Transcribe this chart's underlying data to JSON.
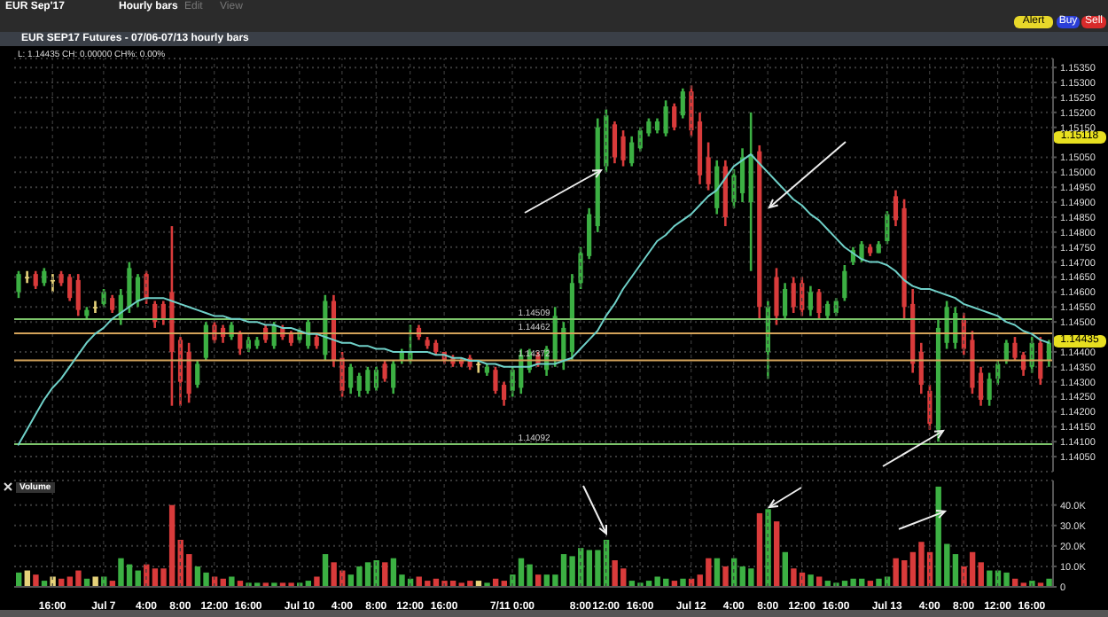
{
  "chart_data": [
    {
      "type": "candlestick",
      "title": "EUR SEP17 Futures - 07/06-07/13 hourly bars",
      "subtitle": "L: 1.14435 CH: 0.00000 CH%: 0.00%",
      "annotations": [
        "EUR Sep'17",
        "Hourly bars",
        "Edit",
        "View",
        "Alert",
        "Buy",
        "Sell",
        "1.15118",
        "1.14435"
      ],
      "categories": [
        null,
        null,
        null,
        null,
        null,
        null,
        null,
        null,
        null,
        null,
        null,
        null,
        null,
        null,
        null,
        null,
        null,
        null,
        null,
        null,
        null,
        null,
        null,
        null,
        null,
        null,
        null,
        null,
        null,
        null,
        null,
        null,
        null,
        null,
        null,
        null,
        null,
        null,
        null,
        null,
        null,
        null,
        null,
        null,
        null,
        null,
        null,
        null,
        null,
        null,
        null,
        null,
        null,
        null,
        null,
        null,
        null,
        null,
        null,
        null,
        null,
        null,
        null,
        null,
        null,
        null,
        null,
        null,
        null,
        null,
        null,
        null,
        null,
        null,
        null,
        null,
        null,
        null,
        null,
        null,
        null,
        null,
        null,
        null,
        null,
        null,
        null,
        null,
        null,
        null,
        null,
        null,
        null,
        null,
        null,
        null,
        null,
        null,
        null,
        null,
        null,
        null,
        null,
        null,
        null,
        null,
        null,
        null,
        null,
        null,
        null,
        null,
        null,
        null,
        null,
        null,
        null,
        null,
        null,
        null,
        null,
        null
      ],
      "ohlc": [
        [
          1.146,
          1.1467,
          1.1458,
          1.1466
        ],
        [
          1.1465,
          1.1467,
          1.1463,
          1.1465
        ],
        [
          1.1466,
          1.1467,
          1.1461,
          1.1462
        ],
        [
          1.1463,
          1.1468,
          1.1462,
          1.1467
        ],
        [
          1.1464,
          1.1466,
          1.146,
          1.1464
        ],
        [
          1.1466,
          1.1467,
          1.1462,
          1.1463
        ],
        [
          1.1465,
          1.1466,
          1.1457,
          1.1458
        ],
        [
          1.1464,
          1.1466,
          1.1452,
          1.1454
        ],
        [
          1.1452,
          1.1455,
          1.1451,
          1.1454
        ],
        [
          1.1455,
          1.1457,
          1.1453,
          1.1455
        ],
        [
          1.1456,
          1.1461,
          1.1455,
          1.146
        ],
        [
          1.1458,
          1.1459,
          1.1453,
          1.1454
        ],
        [
          1.1451,
          1.1461,
          1.1449,
          1.1459
        ],
        [
          1.1455,
          1.147,
          1.1453,
          1.1468
        ],
        [
          1.1457,
          1.1466,
          1.1455,
          1.1465
        ],
        [
          1.1466,
          1.1467,
          1.1456,
          1.1458
        ],
        [
          1.1456,
          1.1457,
          1.1448,
          1.145
        ],
        [
          1.1456,
          1.1457,
          1.1449,
          1.1451
        ],
        [
          1.146,
          1.1482,
          1.1422,
          1.144
        ],
        [
          1.1444,
          1.1445,
          1.1422,
          1.143
        ],
        [
          1.144,
          1.1443,
          1.1423,
          1.1426
        ],
        [
          1.1429,
          1.1437,
          1.1428,
          1.1436
        ],
        [
          1.1438,
          1.145,
          1.1437,
          1.1449
        ],
        [
          1.1449,
          1.145,
          1.1443,
          1.1444
        ],
        [
          1.1448,
          1.1449,
          1.1443,
          1.1445
        ],
        [
          1.1445,
          1.145,
          1.1444,
          1.1449
        ],
        [
          1.1446,
          1.1447,
          1.1439,
          1.1441
        ],
        [
          1.1441,
          1.1445,
          1.144,
          1.1444
        ],
        [
          1.1442,
          1.1445,
          1.1441,
          1.1444
        ],
        [
          1.1448,
          1.1449,
          1.1443,
          1.1444
        ],
        [
          1.1442,
          1.145,
          1.1441,
          1.1449
        ],
        [
          1.1448,
          1.1449,
          1.1444,
          1.1445
        ],
        [
          1.1446,
          1.1447,
          1.1442,
          1.1443
        ],
        [
          1.1444,
          1.1448,
          1.1443,
          1.1447
        ],
        [
          1.1442,
          1.1451,
          1.1441,
          1.145
        ],
        [
          1.1445,
          1.1446,
          1.1441,
          1.1442
        ],
        [
          1.1439,
          1.1459,
          1.1437,
          1.1457
        ],
        [
          1.1457,
          1.1459,
          1.1435,
          1.1437
        ],
        [
          1.1438,
          1.144,
          1.1425,
          1.1427
        ],
        [
          1.1428,
          1.1436,
          1.1426,
          1.1435
        ],
        [
          1.1427,
          1.1433,
          1.1425,
          1.1432
        ],
        [
          1.1427,
          1.1435,
          1.1426,
          1.1434
        ],
        [
          1.1428,
          1.1435,
          1.1427,
          1.1434
        ],
        [
          1.1436,
          1.1437,
          1.143,
          1.1431
        ],
        [
          1.1428,
          1.1437,
          1.1426,
          1.1436
        ],
        [
          1.1437,
          1.1441,
          1.1436,
          1.144
        ],
        [
          1.1437,
          1.1449,
          1.1436,
          1.144
        ],
        [
          1.1448,
          1.1449,
          1.1444,
          1.1445
        ],
        [
          1.1444,
          1.1445,
          1.1441,
          1.1442
        ],
        [
          1.1443,
          1.1444,
          1.1439,
          1.144
        ],
        [
          1.144,
          1.144,
          1.1436,
          1.1437
        ],
        [
          1.1438,
          1.1439,
          1.1435,
          1.1436
        ],
        [
          1.1437,
          1.1438,
          1.1435,
          1.1436
        ],
        [
          1.1438,
          1.1439,
          1.1434,
          1.1435
        ],
        [
          1.1436,
          1.1437,
          1.1433,
          1.1436
        ],
        [
          1.1433,
          1.1436,
          1.1432,
          1.1435
        ],
        [
          1.1434,
          1.1435,
          1.1426,
          1.1427
        ],
        [
          1.1429,
          1.143,
          1.1422,
          1.1424
        ],
        [
          1.1427,
          1.1435,
          1.1425,
          1.1434
        ],
        [
          1.1428,
          1.1441,
          1.1426,
          1.1439
        ],
        [
          1.1434,
          1.1441,
          1.1433,
          1.144
        ],
        [
          1.1439,
          1.144,
          1.1435,
          1.1436
        ],
        [
          1.1434,
          1.1442,
          1.1432,
          1.1441
        ],
        [
          1.1437,
          1.1455,
          1.1435,
          1.1452
        ],
        [
          1.1437,
          1.145,
          1.1434,
          1.1448
        ],
        [
          1.144,
          1.1466,
          1.1437,
          1.1463
        ],
        [
          1.1463,
          1.1475,
          1.1461,
          1.1473
        ],
        [
          1.1472,
          1.1488,
          1.1471,
          1.1486
        ],
        [
          1.1482,
          1.1518,
          1.148,
          1.1515
        ],
        [
          1.1502,
          1.1521,
          1.15,
          1.1519
        ],
        [
          1.1516,
          1.1517,
          1.1503,
          1.1505
        ],
        [
          1.1512,
          1.1514,
          1.1502,
          1.1504
        ],
        [
          1.1503,
          1.1512,
          1.1502,
          1.151
        ],
        [
          1.1508,
          1.1515,
          1.1507,
          1.1514
        ],
        [
          1.1513,
          1.1518,
          1.1512,
          1.1517
        ],
        [
          1.1514,
          1.1518,
          1.1513,
          1.1517
        ],
        [
          1.1513,
          1.1524,
          1.1512,
          1.1522
        ],
        [
          1.1522,
          1.1523,
          1.1514,
          1.1515
        ],
        [
          1.1519,
          1.1528,
          1.1518,
          1.1527
        ],
        [
          1.1527,
          1.1529,
          1.1512,
          1.1514
        ],
        [
          1.1517,
          1.152,
          1.1496,
          1.1499
        ],
        [
          1.1505,
          1.151,
          1.1494,
          1.1496
        ],
        [
          1.1488,
          1.1504,
          1.1486,
          1.1502
        ],
        [
          1.1502,
          1.1504,
          1.1482,
          1.1485
        ],
        [
          1.149,
          1.1501,
          1.1488,
          1.1499
        ],
        [
          1.1493,
          1.1508,
          1.149,
          1.1505
        ],
        [
          1.149,
          1.152,
          1.1467,
          1.1506
        ],
        [
          1.1507,
          1.1509,
          1.1451,
          1.1455
        ],
        [
          1.144,
          1.1457,
          1.1431,
          1.1455
        ],
        [
          1.1465,
          1.1468,
          1.1449,
          1.1452
        ],
        [
          1.1452,
          1.1463,
          1.1451,
          1.1461
        ],
        [
          1.1463,
          1.1465,
          1.1453,
          1.1455
        ],
        [
          1.1463,
          1.1465,
          1.1452,
          1.1454
        ],
        [
          1.1454,
          1.1462,
          1.1452,
          1.146
        ],
        [
          1.146,
          1.1461,
          1.1451,
          1.1453
        ],
        [
          1.1452,
          1.1457,
          1.1451,
          1.1456
        ],
        [
          1.1453,
          1.1458,
          1.1452,
          1.1457
        ],
        [
          1.1458,
          1.1469,
          1.1457,
          1.1467
        ],
        [
          1.147,
          1.1475,
          1.1469,
          1.1474
        ],
        [
          1.1471,
          1.1477,
          1.147,
          1.1476
        ],
        [
          1.1475,
          1.1476,
          1.1472,
          1.1473
        ],
        [
          1.1473,
          1.1477,
          1.1473,
          1.1476
        ],
        [
          1.1477,
          1.1487,
          1.1476,
          1.1486
        ],
        [
          1.1492,
          1.1494,
          1.1482,
          1.1484
        ],
        [
          1.1488,
          1.1491,
          1.1451,
          1.1455
        ],
        [
          1.1456,
          1.1461,
          1.1433,
          1.1436
        ],
        [
          1.144,
          1.1443,
          1.1426,
          1.1429
        ],
        [
          1.1427,
          1.1429,
          1.1414,
          1.1416
        ],
        [
          1.1414,
          1.1451,
          1.141,
          1.1448
        ],
        [
          1.1443,
          1.1457,
          1.1441,
          1.1455
        ],
        [
          1.1443,
          1.1455,
          1.1441,
          1.1453
        ],
        [
          1.1451,
          1.1453,
          1.1439,
          1.1441
        ],
        [
          1.1444,
          1.1447,
          1.1426,
          1.1428
        ],
        [
          1.1433,
          1.1435,
          1.1422,
          1.1424
        ],
        [
          1.1424,
          1.1433,
          1.1422,
          1.1431
        ],
        [
          1.1431,
          1.1437,
          1.1429,
          1.1436
        ],
        [
          1.1437,
          1.1444,
          1.1436,
          1.1443
        ],
        [
          1.1443,
          1.1445,
          1.1437,
          1.1438
        ],
        [
          1.1439,
          1.144,
          1.1432,
          1.1434
        ],
        [
          1.1435,
          1.1445,
          1.1433,
          1.1443
        ],
        [
          1.1443,
          1.1445,
          1.1429,
          1.1431
        ],
        [
          1.1437,
          1.1444,
          1.1435,
          1.1443
        ]
      ],
      "colors": [
        "#3cb043",
        "#e6d27a",
        "#d93b3b",
        "#3cb043",
        "#e6d27a",
        "#d93b3b",
        "#d93b3b",
        "#d93b3b",
        "#3cb043",
        "#e6d27a",
        "#3cb043",
        "#d93b3b",
        "#3cb043",
        "#3cb043",
        "#3cb043",
        "#d93b3b",
        "#d93b3b",
        "#d93b3b",
        "#d93b3b",
        "#d93b3b",
        "#d93b3b",
        "#3cb043",
        "#3cb043",
        "#d93b3b",
        "#d93b3b",
        "#3cb043",
        "#d93b3b",
        "#3cb043",
        "#3cb043",
        "#d93b3b",
        "#3cb043",
        "#d93b3b",
        "#d93b3b",
        "#3cb043",
        "#3cb043",
        "#d93b3b",
        "#3cb043",
        "#d93b3b",
        "#d93b3b",
        "#3cb043",
        "#3cb043",
        "#3cb043",
        "#3cb043",
        "#d93b3b",
        "#3cb043",
        "#3cb043",
        "#3cb043",
        "#d93b3b",
        "#d93b3b",
        "#d93b3b",
        "#d93b3b",
        "#d93b3b",
        "#d93b3b",
        "#d93b3b",
        "#e6d27a",
        "#3cb043",
        "#d93b3b",
        "#d93b3b",
        "#3cb043",
        "#3cb043",
        "#3cb043",
        "#d93b3b",
        "#3cb043",
        "#3cb043",
        "#3cb043",
        "#3cb043",
        "#3cb043",
        "#3cb043",
        "#3cb043",
        "#3cb043",
        "#d93b3b",
        "#d93b3b",
        "#3cb043",
        "#3cb043",
        "#3cb043",
        "#3cb043",
        "#3cb043",
        "#d93b3b",
        "#3cb043",
        "#d93b3b",
        "#d93b3b",
        "#d93b3b",
        "#3cb043",
        "#d93b3b",
        "#3cb043",
        "#3cb043",
        "#3cb043",
        "#d93b3b",
        "#3cb043",
        "#d93b3b",
        "#3cb043",
        "#d93b3b",
        "#d93b3b",
        "#3cb043",
        "#d93b3b",
        "#3cb043",
        "#3cb043",
        "#3cb043",
        "#3cb043",
        "#3cb043",
        "#d93b3b",
        "#3cb043",
        "#3cb043",
        "#d93b3b",
        "#d93b3b",
        "#d93b3b",
        "#d93b3b",
        "#d93b3b",
        "#3cb043",
        "#3cb043",
        "#3cb043",
        "#d93b3b",
        "#d93b3b",
        "#d93b3b",
        "#3cb043",
        "#3cb043",
        "#3cb043",
        "#d93b3b",
        "#d93b3b",
        "#3cb043",
        "#d93b3b",
        "#3cb043"
      ],
      "series": [
        {
          "type": "line",
          "color": "#6fd0c8",
          "values": [
            1.1409,
            1.1414,
            1.1419,
            1.1424,
            1.1428,
            1.1431,
            1.1435,
            1.1439,
            1.1443,
            1.1446,
            1.1448,
            1.1451,
            1.1453,
            1.1455,
            1.1457,
            1.1458,
            1.1458,
            1.1458,
            1.1457,
            1.1456,
            1.1455,
            1.1454,
            1.1453,
            1.1452,
            1.1452,
            1.1451,
            1.1451,
            1.145,
            1.145,
            1.1449,
            1.1449,
            1.1448,
            1.1448,
            1.1447,
            1.1446,
            1.1446,
            1.1445,
            1.1444,
            1.1443,
            1.1443,
            1.1442,
            1.1442,
            1.1441,
            1.1441,
            1.144,
            1.144,
            1.144,
            1.144,
            1.144,
            1.1439,
            1.1439,
            1.1438,
            1.1438,
            1.1437,
            1.1437,
            1.1436,
            1.1436,
            1.1435,
            1.1435,
            1.1435,
            1.1435,
            1.1436,
            1.1436,
            1.1436,
            1.1437,
            1.1438,
            1.1441,
            1.1444,
            1.1447,
            1.1452,
            1.1456,
            1.1461,
            1.1465,
            1.1469,
            1.1473,
            1.1477,
            1.1479,
            1.1482,
            1.1484,
            1.1486,
            1.1489,
            1.1492,
            1.1494,
            1.1498,
            1.1502,
            1.1504,
            1.1506,
            1.1503,
            1.15,
            1.1497,
            1.1494,
            1.1491,
            1.1489,
            1.1486,
            1.1484,
            1.1481,
            1.1478,
            1.1475,
            1.1473,
            1.1471,
            1.147,
            1.147,
            1.1469,
            1.1467,
            1.1464,
            1.1462,
            1.1461,
            1.1461,
            1.146,
            1.1459,
            1.1458,
            1.1456,
            1.1455,
            1.1454,
            1.1453,
            1.1452,
            1.145,
            1.1449,
            1.1447,
            1.1446,
            1.1444,
            1.1443
          ]
        }
      ],
      "ylim": [
        1.14,
        1.1538
      ],
      "yticks": [
        {
          "value": 1.1405,
          "label": "1.14050"
        },
        {
          "value": 1.141,
          "label": "1.14100"
        },
        {
          "value": 1.1415,
          "label": "1.14150"
        },
        {
          "value": 1.142,
          "label": "1.14200"
        },
        {
          "value": 1.1425,
          "label": "1.14250"
        },
        {
          "value": 1.143,
          "label": "1.14300"
        },
        {
          "value": 1.1435,
          "label": "1.14350"
        },
        {
          "value": 1.144,
          "label": "1.14400"
        },
        {
          "value": 1.145,
          "label": "1.14500"
        },
        {
          "value": 1.1455,
          "label": "1.14550"
        },
        {
          "value": 1.146,
          "label": "1.14600"
        },
        {
          "value": 1.1465,
          "label": "1.14650"
        },
        {
          "value": 1.147,
          "label": "1.14700"
        },
        {
          "value": 1.1475,
          "label": "1.14750"
        },
        {
          "value": 1.148,
          "label": "1.14800"
        },
        {
          "value": 1.1485,
          "label": "1.14850"
        },
        {
          "value": 1.149,
          "label": "1.14900"
        },
        {
          "value": 1.1495,
          "label": "1.14950"
        },
        {
          "value": 1.15,
          "label": "1.15000"
        },
        {
          "value": 1.1505,
          "label": "1.15050"
        },
        {
          "value": 1.1515,
          "label": "1.15150"
        },
        {
          "value": 1.152,
          "label": "1.15200"
        },
        {
          "value": 1.1525,
          "label": "1.15250"
        },
        {
          "value": 1.153,
          "label": "1.15300"
        },
        {
          "value": 1.1535,
          "label": "1.15350"
        }
      ],
      "grid": true,
      "tick_labels": "y",
      "ref_lines": [
        {
          "axis": "y",
          "value": 1.14509,
          "label": "1.14509",
          "color": "#7cc46a"
        },
        {
          "axis": "y",
          "value": 1.14462,
          "label": "1.14462",
          "color": "#d4a35a"
        },
        {
          "axis": "y",
          "value": 1.14372,
          "label": "1.14372",
          "color": "#d4a35a"
        },
        {
          "axis": "y",
          "value": 1.14092,
          "label": "1.14092",
          "color": "#7cc46a"
        }
      ]
    },
    {
      "type": "bar",
      "ylabel": "Volume",
      "categories": [
        null,
        null,
        null,
        null,
        "16:00",
        null,
        null,
        null,
        null,
        null,
        "Jul 7",
        null,
        null,
        null,
        null,
        "4:00",
        null,
        null,
        null,
        "8:00",
        null,
        null,
        null,
        "12:00",
        null,
        null,
        null,
        "16:00",
        null,
        null,
        null,
        null,
        null,
        "Jul 10",
        null,
        null,
        null,
        null,
        "4:00",
        null,
        null,
        null,
        "8:00",
        null,
        null,
        null,
        "12:00",
        null,
        null,
        null,
        "16:00",
        null,
        null,
        null,
        null,
        null,
        null,
        null,
        "7/11 0:00",
        null,
        null,
        null,
        null,
        null,
        null,
        null,
        "8:00",
        null,
        null,
        "12:00",
        null,
        null,
        null,
        "16:00",
        null,
        null,
        null,
        null,
        null,
        "Jul 12",
        null,
        null,
        null,
        null,
        "4:00",
        null,
        null,
        null,
        "8:00",
        null,
        null,
        null,
        "12:00",
        null,
        null,
        null,
        "16:00",
        null,
        null,
        null,
        null,
        null,
        "Jul 13",
        null,
        null,
        null,
        null,
        "4:00",
        null,
        null,
        null,
        "8:00",
        null,
        null,
        null,
        "12:00",
        null,
        null,
        null,
        "16:00",
        null,
        null
      ],
      "values": [
        7000,
        8000,
        6000,
        3000,
        5000,
        4000,
        5000,
        8000,
        4000,
        5000,
        5000,
        3000,
        14000,
        11000,
        8000,
        11000,
        9000,
        9000,
        40000,
        23000,
        16000,
        10000,
        7000,
        5000,
        4000,
        5000,
        3000,
        2000,
        2000,
        2000,
        2000,
        2000,
        2000,
        2000,
        3000,
        5000,
        16000,
        12000,
        8000,
        6000,
        10000,
        12000,
        13000,
        12000,
        14000,
        6000,
        4000,
        5000,
        3000,
        4000,
        3000,
        3000,
        2000,
        3000,
        3000,
        2000,
        4000,
        3000,
        6000,
        14000,
        11000,
        6000,
        6000,
        6000,
        16000,
        15000,
        19000,
        18000,
        18000,
        23000,
        13000,
        9000,
        3000,
        2000,
        3000,
        5000,
        4000,
        3000,
        4000,
        4000,
        6000,
        14000,
        14000,
        10000,
        14000,
        10000,
        9000,
        36000,
        38000,
        32000,
        17000,
        9000,
        7000,
        6000,
        5000,
        3000,
        2000,
        3000,
        4000,
        4000,
        3000,
        4000,
        5000,
        14000,
        13000,
        17000,
        22000,
        17000,
        49000,
        21000,
        16000,
        10000,
        17000,
        12000,
        8000,
        8000,
        7000,
        4000,
        2000,
        3000,
        2000,
        4000
      ],
      "colors": [
        "#3cb043",
        "#e6d27a",
        "#d93b3b",
        "#3cb043",
        "#e6d27a",
        "#d93b3b",
        "#d93b3b",
        "#d93b3b",
        "#3cb043",
        "#e6d27a",
        "#3cb043",
        "#d93b3b",
        "#3cb043",
        "#3cb043",
        "#3cb043",
        "#d93b3b",
        "#d93b3b",
        "#d93b3b",
        "#d93b3b",
        "#d93b3b",
        "#d93b3b",
        "#3cb043",
        "#3cb043",
        "#d93b3b",
        "#d93b3b",
        "#3cb043",
        "#d93b3b",
        "#3cb043",
        "#3cb043",
        "#d93b3b",
        "#3cb043",
        "#d93b3b",
        "#d93b3b",
        "#3cb043",
        "#3cb043",
        "#d93b3b",
        "#3cb043",
        "#d93b3b",
        "#d93b3b",
        "#3cb043",
        "#3cb043",
        "#3cb043",
        "#3cb043",
        "#d93b3b",
        "#3cb043",
        "#3cb043",
        "#3cb043",
        "#d93b3b",
        "#d93b3b",
        "#d93b3b",
        "#d93b3b",
        "#d93b3b",
        "#d93b3b",
        "#d93b3b",
        "#e6d27a",
        "#3cb043",
        "#d93b3b",
        "#d93b3b",
        "#3cb043",
        "#3cb043",
        "#3cb043",
        "#d93b3b",
        "#3cb043",
        "#3cb043",
        "#3cb043",
        "#3cb043",
        "#3cb043",
        "#3cb043",
        "#3cb043",
        "#3cb043",
        "#d93b3b",
        "#d93b3b",
        "#3cb043",
        "#3cb043",
        "#3cb043",
        "#3cb043",
        "#3cb043",
        "#d93b3b",
        "#3cb043",
        "#d93b3b",
        "#d93b3b",
        "#d93b3b",
        "#3cb043",
        "#d93b3b",
        "#3cb043",
        "#3cb043",
        "#3cb043",
        "#d93b3b",
        "#3cb043",
        "#d93b3b",
        "#3cb043",
        "#d93b3b",
        "#d93b3b",
        "#3cb043",
        "#d93b3b",
        "#3cb043",
        "#3cb043",
        "#3cb043",
        "#3cb043",
        "#3cb043",
        "#d93b3b",
        "#3cb043",
        "#3cb043",
        "#d93b3b",
        "#d93b3b",
        "#d93b3b",
        "#d93b3b",
        "#d93b3b",
        "#3cb043",
        "#3cb043",
        "#3cb043",
        "#d93b3b",
        "#d93b3b",
        "#d93b3b",
        "#3cb043",
        "#3cb043",
        "#3cb043",
        "#d93b3b",
        "#d93b3b",
        "#3cb043",
        "#d93b3b",
        "#3cb043"
      ],
      "ylim": [
        0,
        52000
      ],
      "yticks": [
        0,
        {
          "value": 10000,
          "label": "10.0K"
        },
        {
          "value": 20000,
          "label": "20.0K"
        },
        {
          "value": 30000,
          "label": "30.0K"
        },
        {
          "value": 40000,
          "label": "40.0K"
        }
      ],
      "grid": true
    }
  ]
}
